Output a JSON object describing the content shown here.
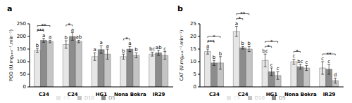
{
  "chart_data": [
    {
      "type": "bar",
      "title": "a",
      "y_label": "POD (U.mgₚᵣₒₜ⁻¹.min⁻¹)",
      "categories": [
        "C34",
        "C24",
        "HG1",
        "Nona Bokra",
        "IR29"
      ],
      "series": [
        {
          "name": "CK",
          "color": "#e6e6e6",
          "values": [
            145,
            168,
            120,
            120,
            130
          ],
          "errors": [
            8,
            15,
            15,
            10,
            8
          ],
          "letters": [
            "b",
            "b",
            "a",
            "b",
            "bc"
          ]
        },
        {
          "name": "D5",
          "color": "#8c8c8c",
          "values": [
            185,
            200,
            148,
            150,
            135
          ],
          "errors": [
            8,
            15,
            15,
            10,
            10
          ],
          "letters": [
            "a",
            "a",
            "a",
            "a",
            "ab"
          ]
        },
        {
          "name": "D10",
          "color": "#c4c4c4",
          "values": [
            180,
            180,
            130,
            125,
            125
          ],
          "errors": [
            5,
            5,
            20,
            10,
            15
          ],
          "letters": [
            "a",
            "ab",
            "a",
            "b",
            "c"
          ]
        }
      ],
      "significance": [
        {
          "category": "C34",
          "from": "CK",
          "to": "D5",
          "label": "***"
        },
        {
          "category": "C34",
          "from": "CK",
          "to": "D10",
          "label": "**"
        },
        {
          "category": "C24",
          "from": "CK",
          "to": "D5",
          "label": "*"
        },
        {
          "category": "Nona Bokra",
          "from": "CK",
          "to": "D5",
          "label": "*"
        }
      ],
      "ylim": [
        0,
        250
      ],
      "yticks": [
        0,
        50,
        100,
        150,
        200,
        250
      ],
      "legend": "bottom"
    },
    {
      "type": "bar",
      "title": "b",
      "y_label": "CAT (U.mgₚᵣₒₜ⁻¹.min⁻¹)",
      "categories": [
        "C34",
        "C24",
        "HG1",
        "Nona Bokra",
        "IR29"
      ],
      "series": [
        {
          "name": "CK",
          "color": "#e6e6e6",
          "values": [
            14,
            22,
            10.5,
            10,
            7.5
          ],
          "errors": [
            1,
            2,
            2.5,
            1,
            2.5
          ],
          "letters": [
            "a",
            "a",
            "bc",
            "c",
            "c"
          ]
        },
        {
          "name": "D5",
          "color": "#8c8c8c",
          "values": [
            9.5,
            15.5,
            6,
            8,
            7
          ],
          "errors": [
            1,
            0.5,
            1.5,
            1,
            2
          ],
          "letters": [
            "b",
            "b",
            "c",
            "bc",
            "c"
          ]
        },
        {
          "name": "D10",
          "color": "#c4c4c4",
          "values": [
            9.5,
            15,
            4.5,
            7.5,
            2.5
          ],
          "errors": [
            2.5,
            1,
            1.5,
            1,
            1
          ],
          "letters": [
            "b",
            "b",
            "c",
            "c",
            "d"
          ]
        }
      ],
      "significance": [
        {
          "category": "C34",
          "from": "CK",
          "to": "D5",
          "label": "***"
        },
        {
          "category": "C34",
          "from": "CK",
          "to": "D10",
          "label": "*"
        },
        {
          "category": "C24",
          "from": "CK",
          "to": "D5",
          "label": "*"
        },
        {
          "category": "C24",
          "from": "CK",
          "to": "D10",
          "label": "**"
        },
        {
          "category": "HG1",
          "from": "CK",
          "to": "D5",
          "label": "*"
        },
        {
          "category": "HG1",
          "from": "CK",
          "to": "D10",
          "label": "*"
        },
        {
          "category": "Nona Bokra",
          "from": "CK",
          "to": "D5",
          "label": "*"
        },
        {
          "category": "IR29",
          "from": "CK",
          "to": "D10",
          "label": "**"
        }
      ],
      "ylim": [
        0,
        25
      ],
      "yticks": [
        0,
        5,
        10,
        15,
        20,
        25
      ],
      "legend": "bottom"
    }
  ]
}
